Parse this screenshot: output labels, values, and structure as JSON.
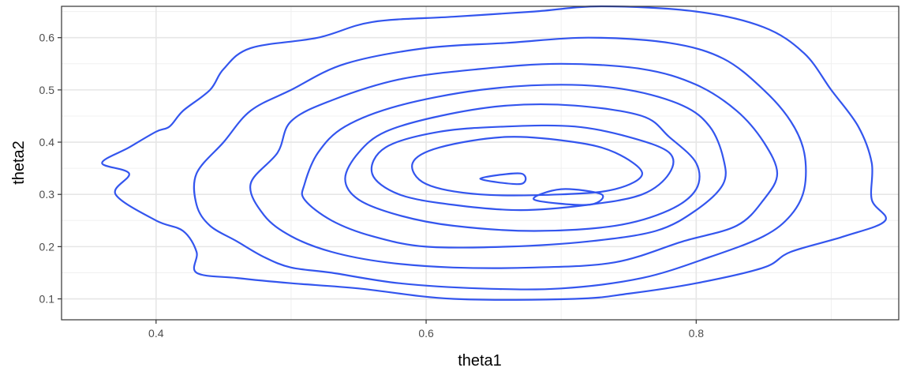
{
  "chart_data": {
    "type": "contour",
    "title": "",
    "xlabel": "theta1",
    "ylabel": "theta2",
    "xlim": [
      0.33,
      0.95
    ],
    "ylim": [
      0.06,
      0.66
    ],
    "x_ticks": [
      0.4,
      0.6,
      0.8
    ],
    "x_tick_labels": [
      "0.4",
      "0.6",
      "0.8"
    ],
    "y_ticks": [
      0.1,
      0.2,
      0.3,
      0.4,
      0.5,
      0.6
    ],
    "y_tick_labels": [
      "0.1",
      "0.2",
      "0.3",
      "0.4",
      "0.5",
      "0.6"
    ],
    "grid": true,
    "theme": "bw",
    "line_color": "#3355EE",
    "contours": [
      {
        "level": 1,
        "points": [
          [
            0.36,
            0.36
          ],
          [
            0.38,
            0.39
          ],
          [
            0.4,
            0.42
          ],
          [
            0.41,
            0.43
          ],
          [
            0.42,
            0.46
          ],
          [
            0.44,
            0.5
          ],
          [
            0.45,
            0.54
          ],
          [
            0.47,
            0.58
          ],
          [
            0.52,
            0.6
          ],
          [
            0.56,
            0.63
          ],
          [
            0.62,
            0.64
          ],
          [
            0.68,
            0.65
          ],
          [
            0.73,
            0.66
          ],
          [
            0.8,
            0.65
          ],
          [
            0.85,
            0.62
          ],
          [
            0.88,
            0.57
          ],
          [
            0.9,
            0.5
          ],
          [
            0.92,
            0.43
          ],
          [
            0.93,
            0.36
          ],
          [
            0.93,
            0.29
          ],
          [
            0.94,
            0.25
          ],
          [
            0.91,
            0.22
          ],
          [
            0.87,
            0.19
          ],
          [
            0.85,
            0.16
          ],
          [
            0.8,
            0.13
          ],
          [
            0.75,
            0.11
          ],
          [
            0.71,
            0.1
          ],
          [
            0.62,
            0.1
          ],
          [
            0.55,
            0.12
          ],
          [
            0.5,
            0.13
          ],
          [
            0.46,
            0.14
          ],
          [
            0.43,
            0.15
          ],
          [
            0.43,
            0.19
          ],
          [
            0.42,
            0.23
          ],
          [
            0.4,
            0.25
          ],
          [
            0.37,
            0.3
          ],
          [
            0.38,
            0.34
          ],
          [
            0.36,
            0.36
          ]
        ]
      },
      {
        "level": 2,
        "points": [
          [
            0.43,
            0.34
          ],
          [
            0.45,
            0.4
          ],
          [
            0.47,
            0.46
          ],
          [
            0.5,
            0.5
          ],
          [
            0.54,
            0.55
          ],
          [
            0.6,
            0.58
          ],
          [
            0.66,
            0.59
          ],
          [
            0.72,
            0.6
          ],
          [
            0.78,
            0.59
          ],
          [
            0.82,
            0.56
          ],
          [
            0.85,
            0.5
          ],
          [
            0.87,
            0.44
          ],
          [
            0.88,
            0.38
          ],
          [
            0.88,
            0.31
          ],
          [
            0.87,
            0.26
          ],
          [
            0.85,
            0.22
          ],
          [
            0.81,
            0.18
          ],
          [
            0.76,
            0.14
          ],
          [
            0.7,
            0.12
          ],
          [
            0.64,
            0.12
          ],
          [
            0.58,
            0.13
          ],
          [
            0.53,
            0.15
          ],
          [
            0.5,
            0.16
          ],
          [
            0.48,
            0.18
          ],
          [
            0.46,
            0.21
          ],
          [
            0.44,
            0.24
          ],
          [
            0.43,
            0.28
          ],
          [
            0.43,
            0.34
          ]
        ]
      },
      {
        "level": 3,
        "points": [
          [
            0.47,
            0.32
          ],
          [
            0.49,
            0.38
          ],
          [
            0.5,
            0.44
          ],
          [
            0.53,
            0.48
          ],
          [
            0.58,
            0.52
          ],
          [
            0.64,
            0.54
          ],
          [
            0.7,
            0.55
          ],
          [
            0.76,
            0.54
          ],
          [
            0.8,
            0.51
          ],
          [
            0.83,
            0.46
          ],
          [
            0.85,
            0.4
          ],
          [
            0.86,
            0.34
          ],
          [
            0.85,
            0.29
          ],
          [
            0.83,
            0.24
          ],
          [
            0.79,
            0.21
          ],
          [
            0.74,
            0.17
          ],
          [
            0.68,
            0.16
          ],
          [
            0.62,
            0.16
          ],
          [
            0.57,
            0.17
          ],
          [
            0.53,
            0.19
          ],
          [
            0.5,
            0.22
          ],
          [
            0.48,
            0.26
          ],
          [
            0.47,
            0.32
          ]
        ]
      },
      {
        "level": 4,
        "points": [
          [
            0.51,
            0.32
          ],
          [
            0.52,
            0.38
          ],
          [
            0.54,
            0.43
          ],
          [
            0.58,
            0.47
          ],
          [
            0.64,
            0.5
          ],
          [
            0.7,
            0.51
          ],
          [
            0.75,
            0.5
          ],
          [
            0.79,
            0.47
          ],
          [
            0.81,
            0.43
          ],
          [
            0.82,
            0.37
          ],
          [
            0.82,
            0.32
          ],
          [
            0.8,
            0.27
          ],
          [
            0.77,
            0.23
          ],
          [
            0.72,
            0.21
          ],
          [
            0.66,
            0.2
          ],
          [
            0.6,
            0.2
          ],
          [
            0.56,
            0.22
          ],
          [
            0.53,
            0.25
          ],
          [
            0.51,
            0.29
          ],
          [
            0.51,
            0.32
          ]
        ]
      },
      {
        "level": 5,
        "points": [
          [
            0.54,
            0.33
          ],
          [
            0.55,
            0.38
          ],
          [
            0.57,
            0.42
          ],
          [
            0.61,
            0.45
          ],
          [
            0.66,
            0.47
          ],
          [
            0.71,
            0.47
          ],
          [
            0.76,
            0.45
          ],
          [
            0.78,
            0.41
          ],
          [
            0.8,
            0.36
          ],
          [
            0.8,
            0.31
          ],
          [
            0.78,
            0.27
          ],
          [
            0.74,
            0.24
          ],
          [
            0.68,
            0.23
          ],
          [
            0.62,
            0.24
          ],
          [
            0.58,
            0.26
          ],
          [
            0.55,
            0.29
          ],
          [
            0.54,
            0.33
          ]
        ]
      },
      {
        "level": 6,
        "points": [
          [
            0.56,
            0.34
          ],
          [
            0.57,
            0.39
          ],
          [
            0.61,
            0.42
          ],
          [
            0.66,
            0.43
          ],
          [
            0.71,
            0.43
          ],
          [
            0.75,
            0.41
          ],
          [
            0.78,
            0.38
          ],
          [
            0.78,
            0.34
          ],
          [
            0.76,
            0.3
          ],
          [
            0.72,
            0.28
          ],
          [
            0.67,
            0.27
          ],
          [
            0.62,
            0.28
          ],
          [
            0.58,
            0.3
          ],
          [
            0.56,
            0.34
          ]
        ]
      },
      {
        "level": 7,
        "points": [
          [
            0.59,
            0.36
          ],
          [
            0.61,
            0.39
          ],
          [
            0.66,
            0.41
          ],
          [
            0.71,
            0.4
          ],
          [
            0.74,
            0.38
          ],
          [
            0.76,
            0.34
          ],
          [
            0.74,
            0.31
          ],
          [
            0.7,
            0.3
          ],
          [
            0.64,
            0.3
          ],
          [
            0.6,
            0.32
          ],
          [
            0.59,
            0.36
          ]
        ]
      },
      {
        "level": 8,
        "points": [
          [
            0.64,
            0.33
          ],
          [
            0.67,
            0.34
          ],
          [
            0.67,
            0.32
          ],
          [
            0.64,
            0.33
          ]
        ]
      },
      {
        "level": 8,
        "points": [
          [
            0.68,
            0.29
          ],
          [
            0.7,
            0.31
          ],
          [
            0.73,
            0.3
          ],
          [
            0.72,
            0.28
          ],
          [
            0.68,
            0.29
          ]
        ]
      }
    ]
  }
}
